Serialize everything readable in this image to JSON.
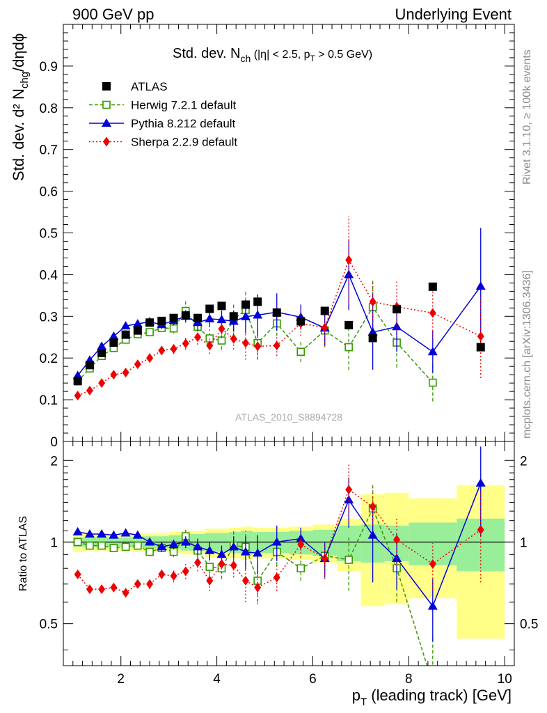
{
  "header": {
    "left": "900 GeV pp",
    "right": "Underlying Event"
  },
  "side_labels": {
    "rivet": "Rivet 3.1.10, ≥ 100k events",
    "mcplots": "mcplots.cern.ch [arXiv:1306.3436]"
  },
  "chart_data": [
    {
      "type": "scatter",
      "title": "Std. dev. N",
      "title_sub": "ch",
      "title_rest": " (|η| < 2.5, p",
      "title_sub2": "T",
      "title_end": " > 0.5 GeV)",
      "ylabel": "Std. dev. d² N",
      "ylabel_sub": "chg",
      "ylabel_rest": "/dηdϕ",
      "xlim": [
        0.8,
        10.2
      ],
      "ylim": [
        0,
        1.0
      ],
      "yticks": [
        "0",
        "0.1",
        "0.2",
        "0.3",
        "0.4",
        "0.5",
        "0.6",
        "0.7",
        "0.8",
        "0.9"
      ],
      "watermark": "ATLAS_2010_S8894728",
      "legend_position": "top-left",
      "series": [
        {
          "name": "ATLAS",
          "color": "#000000",
          "marker": "square-filled",
          "x": [
            1.1,
            1.35,
            1.6,
            1.85,
            2.1,
            2.35,
            2.6,
            2.85,
            3.1,
            3.35,
            3.6,
            3.85,
            4.1,
            4.35,
            4.6,
            4.85,
            5.25,
            5.75,
            6.25,
            6.75,
            7.25,
            7.75,
            8.5,
            9.5
          ],
          "y": [
            0.145,
            0.183,
            0.212,
            0.237,
            0.256,
            0.266,
            0.285,
            0.289,
            0.296,
            0.302,
            0.296,
            0.318,
            0.325,
            0.3,
            0.328,
            0.335,
            0.309,
            0.288,
            0.313,
            0.279,
            0.248,
            0.317,
            0.371,
            0.226
          ]
        },
        {
          "name": "Herwig 7.2.1 default",
          "color": "#339900",
          "marker": "square-open",
          "x": [
            1.1,
            1.35,
            1.6,
            1.85,
            2.1,
            2.35,
            2.6,
            2.85,
            3.1,
            3.35,
            3.6,
            3.85,
            4.1,
            4.35,
            4.6,
            4.85,
            5.25,
            5.75,
            6.25,
            6.75,
            7.25,
            7.75,
            8.5
          ],
          "y": [
            0.144,
            0.175,
            0.205,
            0.224,
            0.244,
            0.257,
            0.262,
            0.272,
            0.271,
            0.313,
            0.275,
            0.247,
            0.242,
            0.293,
            0.315,
            0.236,
            0.283,
            0.215,
            0.266,
            0.226,
            0.322,
            0.237,
            0.141
          ],
          "err": [
            0.006,
            0.006,
            0.006,
            0.006,
            0.007,
            0.008,
            0.009,
            0.01,
            0.012,
            0.025,
            0.025,
            0.022,
            0.022,
            0.04,
            0.045,
            0.04,
            0.03,
            0.025,
            0.04,
            0.055,
            0.065,
            0.06,
            0.045
          ]
        },
        {
          "name": "Pythia 8.212 default",
          "color": "#0000dd",
          "marker": "triangle-filled",
          "x": [
            1.1,
            1.35,
            1.6,
            1.85,
            2.1,
            2.35,
            2.6,
            2.85,
            3.1,
            3.35,
            3.6,
            3.85,
            4.1,
            4.35,
            4.6,
            4.85,
            5.25,
            5.75,
            6.25,
            6.75,
            7.25,
            7.75,
            8.5,
            9.5
          ],
          "y": [
            0.158,
            0.195,
            0.228,
            0.252,
            0.277,
            0.282,
            0.287,
            0.28,
            0.29,
            0.3,
            0.285,
            0.294,
            0.292,
            0.288,
            0.299,
            0.303,
            0.31,
            0.298,
            0.272,
            0.4,
            0.262,
            0.275,
            0.215,
            0.372
          ],
          "err": [
            0.006,
            0.006,
            0.006,
            0.006,
            0.007,
            0.008,
            0.009,
            0.01,
            0.012,
            0.015,
            0.02,
            0.02,
            0.022,
            0.025,
            0.04,
            0.05,
            0.045,
            0.03,
            0.04,
            0.085,
            0.09,
            0.06,
            0.05,
            0.14
          ]
        },
        {
          "name": "Sherpa 2.2.9 default",
          "color": "#ee0000",
          "marker": "diamond-filled",
          "x": [
            1.1,
            1.35,
            1.6,
            1.85,
            2.1,
            2.35,
            2.6,
            2.85,
            3.1,
            3.35,
            3.6,
            3.85,
            4.1,
            4.35,
            4.6,
            4.85,
            5.25,
            5.75,
            6.25,
            6.75,
            7.25,
            7.75,
            8.5,
            9.5
          ],
          "y": [
            0.11,
            0.122,
            0.14,
            0.16,
            0.165,
            0.185,
            0.2,
            0.218,
            0.222,
            0.235,
            0.25,
            0.23,
            0.27,
            0.246,
            0.236,
            0.228,
            0.23,
            0.283,
            0.273,
            0.435,
            0.335,
            0.323,
            0.308,
            0.252
          ],
          "err": [
            0.005,
            0.005,
            0.006,
            0.006,
            0.007,
            0.008,
            0.009,
            0.01,
            0.012,
            0.015,
            0.018,
            0.02,
            0.022,
            0.025,
            0.04,
            0.03,
            0.025,
            0.03,
            0.045,
            0.105,
            0.05,
            0.06,
            0.06,
            0.1
          ]
        }
      ]
    },
    {
      "type": "scatter",
      "ylabel": "Ratio to ATLAS",
      "xlabel": "p",
      "xlabel_sub": "T",
      "xlabel_rest": " (leading track) [GeV]",
      "xlim": [
        0.8,
        10.2
      ],
      "ylim": [
        0.35,
        2.35
      ],
      "xticks": [
        "2",
        "4",
        "6",
        "8",
        "10"
      ],
      "yticks": [
        "0.5",
        "1",
        "2"
      ],
      "reference_line": 1,
      "uncertainty_bands": {
        "x_edges": [
          1.0,
          1.25,
          1.5,
          1.75,
          2.0,
          2.25,
          2.5,
          2.75,
          3.0,
          3.25,
          3.5,
          3.75,
          4.0,
          4.25,
          4.5,
          4.75,
          5.0,
          5.5,
          6.0,
          6.5,
          7.0,
          7.5,
          8.0,
          9.0,
          10.0
        ],
        "inner_low": [
          0.96,
          0.96,
          0.96,
          0.96,
          0.96,
          0.95,
          0.95,
          0.95,
          0.94,
          0.93,
          0.93,
          0.92,
          0.92,
          0.91,
          0.9,
          0.91,
          0.91,
          0.9,
          0.89,
          0.85,
          0.84,
          0.85,
          0.82,
          0.78
        ],
        "inner_high": [
          1.04,
          1.04,
          1.04,
          1.04,
          1.04,
          1.05,
          1.05,
          1.05,
          1.06,
          1.07,
          1.07,
          1.08,
          1.08,
          1.09,
          1.1,
          1.09,
          1.09,
          1.1,
          1.11,
          1.15,
          1.16,
          1.15,
          1.18,
          1.22
        ],
        "outer_low": [
          0.92,
          0.93,
          0.93,
          0.93,
          0.93,
          0.92,
          0.92,
          0.92,
          0.91,
          0.9,
          0.9,
          0.88,
          0.88,
          0.87,
          0.86,
          0.87,
          0.87,
          0.86,
          0.84,
          0.78,
          0.58,
          0.59,
          0.62,
          0.44
        ],
        "outer_high": [
          1.08,
          1.07,
          1.07,
          1.07,
          1.07,
          1.08,
          1.08,
          1.08,
          1.09,
          1.1,
          1.1,
          1.12,
          1.12,
          1.13,
          1.14,
          1.13,
          1.13,
          1.14,
          1.16,
          1.22,
          1.5,
          1.52,
          1.45,
          1.62
        ]
      },
      "colors": {
        "inner": "#99ee99",
        "outer": "#ffff88"
      },
      "series": [
        {
          "name": "Herwig 7.2.1 default",
          "color": "#339900",
          "marker": "square-open",
          "x": [
            1.1,
            1.35,
            1.6,
            1.85,
            2.1,
            2.35,
            2.6,
            2.85,
            3.1,
            3.35,
            3.6,
            3.85,
            4.1,
            4.35,
            4.6,
            4.85,
            5.25,
            5.75,
            6.25,
            6.75,
            7.25,
            7.75,
            8.5
          ],
          "y": [
            1.0,
            0.97,
            0.97,
            0.95,
            0.96,
            0.97,
            0.92,
            0.95,
            0.92,
            1.05,
            0.93,
            0.81,
            0.8,
            0.97,
            0.96,
            0.72,
            0.92,
            0.8,
            0.89,
            0.86,
            1.33,
            0.8,
            0.3
          ],
          "err": [
            0.03,
            0.03,
            0.03,
            0.03,
            0.03,
            0.03,
            0.03,
            0.03,
            0.04,
            0.07,
            0.07,
            0.07,
            0.07,
            0.13,
            0.14,
            0.12,
            0.1,
            0.08,
            0.12,
            0.2,
            0.3,
            0.2,
            0.15
          ]
        },
        {
          "name": "Pythia 8.212 default",
          "color": "#0000dd",
          "marker": "triangle-filled",
          "x": [
            1.1,
            1.35,
            1.6,
            1.85,
            2.1,
            2.35,
            2.6,
            2.85,
            3.1,
            3.35,
            3.6,
            3.85,
            4.1,
            4.35,
            4.6,
            4.85,
            5.25,
            5.75,
            6.25,
            6.75,
            7.25,
            7.75,
            8.5,
            9.5
          ],
          "y": [
            1.09,
            1.07,
            1.07,
            1.06,
            1.08,
            1.06,
            1.0,
            0.96,
            0.98,
            1.0,
            0.96,
            0.93,
            0.9,
            0.96,
            0.92,
            0.91,
            1.0,
            1.03,
            0.87,
            1.43,
            1.06,
            0.87,
            0.58,
            1.65
          ],
          "err": [
            0.03,
            0.03,
            0.03,
            0.03,
            0.03,
            0.03,
            0.03,
            0.04,
            0.04,
            0.05,
            0.07,
            0.07,
            0.07,
            0.09,
            0.13,
            0.15,
            0.15,
            0.1,
            0.13,
            0.3,
            0.35,
            0.2,
            0.15,
            0.6
          ]
        },
        {
          "name": "Sherpa 2.2.9 default",
          "color": "#ee0000",
          "marker": "diamond-filled",
          "x": [
            1.1,
            1.35,
            1.6,
            1.85,
            2.1,
            2.35,
            2.6,
            2.85,
            3.1,
            3.35,
            3.6,
            3.85,
            4.1,
            4.35,
            4.6,
            4.85,
            5.25,
            5.75,
            6.25,
            6.75,
            7.25,
            7.75,
            8.5,
            9.5
          ],
          "y": [
            0.76,
            0.67,
            0.67,
            0.68,
            0.65,
            0.7,
            0.7,
            0.76,
            0.75,
            0.78,
            0.84,
            0.72,
            0.83,
            0.82,
            0.72,
            0.68,
            0.74,
            0.98,
            0.87,
            1.56,
            1.35,
            1.02,
            0.83,
            1.11
          ],
          "err": [
            0.02,
            0.02,
            0.02,
            0.02,
            0.02,
            0.02,
            0.03,
            0.03,
            0.04,
            0.05,
            0.06,
            0.06,
            0.06,
            0.08,
            0.12,
            0.09,
            0.08,
            0.1,
            0.14,
            0.37,
            0.2,
            0.2,
            0.16,
            0.4
          ]
        }
      ]
    }
  ]
}
